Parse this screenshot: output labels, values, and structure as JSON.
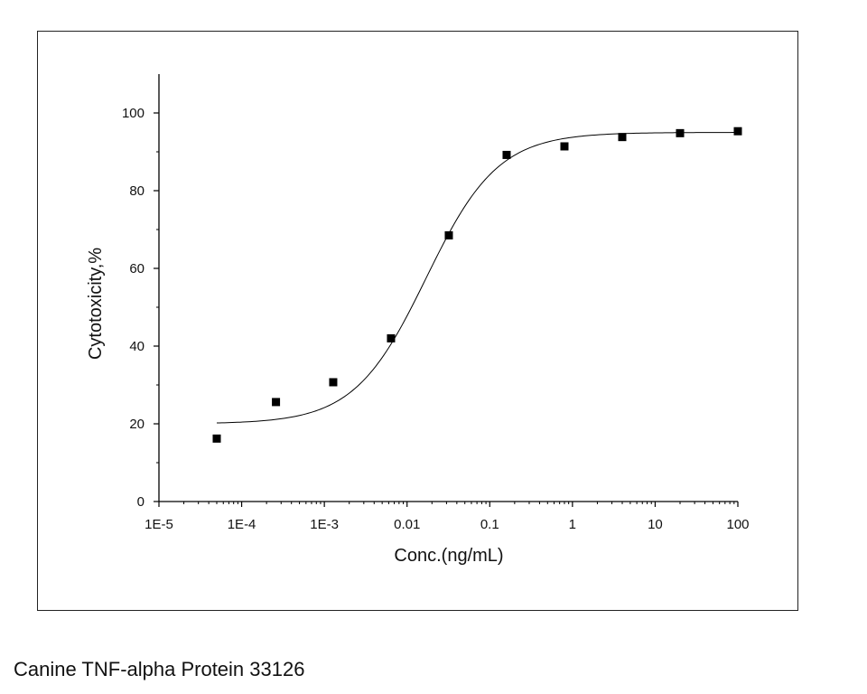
{
  "caption": "Canine TNF-alpha Protein 33126",
  "chart_data": {
    "type": "scatter",
    "xlabel": "Conc.(ng/mL)",
    "ylabel": "Cytotoxicity,%",
    "xscale": "log",
    "xlim": [
      1e-05,
      100
    ],
    "ylim": [
      0,
      110
    ],
    "grid": false,
    "legend": "none",
    "x_ticks": [
      {
        "value": 1e-05,
        "label": "1E-5"
      },
      {
        "value": 0.0001,
        "label": "1E-4"
      },
      {
        "value": 0.001,
        "label": "1E-3"
      },
      {
        "value": 0.01,
        "label": "0.01"
      },
      {
        "value": 0.1,
        "label": "0.1"
      },
      {
        "value": 1,
        "label": "1"
      },
      {
        "value": 10,
        "label": "10"
      },
      {
        "value": 100,
        "label": "100"
      }
    ],
    "y_ticks": [
      {
        "value": 0,
        "label": "0"
      },
      {
        "value": 20,
        "label": "20"
      },
      {
        "value": 40,
        "label": "40"
      },
      {
        "value": 60,
        "label": "60"
      },
      {
        "value": 80,
        "label": "80"
      },
      {
        "value": 100,
        "label": "100"
      }
    ],
    "series": [
      {
        "x": [
          5e-05,
          0.00026,
          0.00128,
          0.0064,
          0.032,
          0.16,
          0.8,
          4,
          20,
          100
        ],
        "y": [
          16.2,
          25.6,
          30.7,
          42.0,
          68.5,
          89.2,
          91.4,
          93.8,
          94.8,
          95.3
        ],
        "marker": "square",
        "color": "#000000"
      }
    ],
    "fit_curve": {
      "type": "logistic",
      "bottom": 20.0,
      "top": 95.0,
      "ec50": 0.017,
      "hill": 1.0,
      "color": "#000000",
      "x_range": [
        5e-05,
        100
      ]
    }
  }
}
